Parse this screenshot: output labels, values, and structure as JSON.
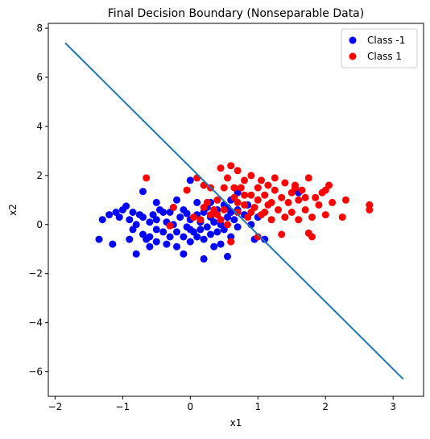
{
  "chart_data": {
    "type": "scatter",
    "title": "Final Decision Boundary (Nonseparable Data)",
    "xlabel": "x1",
    "ylabel": "x2",
    "xlim": [
      -2.1,
      3.45
    ],
    "ylim": [
      -7.0,
      8.2
    ],
    "x_ticks": [
      -2,
      -1,
      0,
      1,
      2,
      3
    ],
    "y_ticks": [
      -6,
      -4,
      -2,
      0,
      2,
      4,
      6,
      8
    ],
    "x_tick_labels": [
      "−2",
      "−1",
      "0",
      "1",
      "2",
      "3"
    ],
    "y_tick_labels": [
      "−6",
      "−4",
      "−2",
      "0",
      "2",
      "4",
      "6",
      "8"
    ],
    "grid": false,
    "legend": {
      "placement": "top-right",
      "entries": [
        {
          "label": "Class -1",
          "color": "#0000ff"
        },
        {
          "label": "Class 1",
          "color": "#ff0000"
        }
      ]
    },
    "boundary_line": {
      "color": "#1f77b4",
      "points": [
        [
          -1.85,
          7.4
        ],
        [
          3.15,
          -6.3
        ]
      ]
    },
    "series": [
      {
        "name": "Class -1",
        "color": "#0000ff",
        "points": [
          [
            -1.35,
            -0.6
          ],
          [
            -1.3,
            0.2
          ],
          [
            -1.2,
            0.4
          ],
          [
            -1.15,
            -0.8
          ],
          [
            -1.1,
            0.5
          ],
          [
            -1.05,
            0.3
          ],
          [
            -1.0,
            0.6
          ],
          [
            -0.95,
            0.75
          ],
          [
            -0.9,
            -0.6
          ],
          [
            -0.9,
            0.2
          ],
          [
            -0.85,
            0.5
          ],
          [
            -0.85,
            -0.2
          ],
          [
            -0.8,
            0.0
          ],
          [
            -0.8,
            -1.2
          ],
          [
            -0.75,
            0.4
          ],
          [
            -0.7,
            -0.4
          ],
          [
            -0.7,
            0.3
          ],
          [
            -0.65,
            -0.6
          ],
          [
            -0.6,
            -0.5
          ],
          [
            -0.6,
            0.1
          ],
          [
            -0.6,
            -0.9
          ],
          [
            -0.55,
            0.4
          ],
          [
            -0.5,
            -0.2
          ],
          [
            -0.5,
            -0.7
          ],
          [
            -0.5,
            0.2
          ],
          [
            -0.45,
            0.6
          ],
          [
            -0.4,
            -0.3
          ],
          [
            -0.35,
            0.1
          ],
          [
            -0.35,
            -0.8
          ],
          [
            -0.3,
            0.5
          ],
          [
            -0.3,
            -0.5
          ],
          [
            -0.25,
            0.0
          ],
          [
            -0.2,
            -0.3
          ],
          [
            -0.2,
            -0.9
          ],
          [
            -0.15,
            0.3
          ],
          [
            -0.1,
            -0.5
          ],
          [
            -0.1,
            0.6
          ],
          [
            -0.05,
            -0.1
          ],
          [
            0.0,
            0.2
          ],
          [
            0.0,
            -0.7
          ],
          [
            0.05,
            -0.3
          ],
          [
            0.1,
            0.4
          ],
          [
            0.1,
            -0.5
          ],
          [
            0.15,
            0.1
          ],
          [
            0.15,
            -0.2
          ],
          [
            0.2,
            -0.6
          ],
          [
            0.2,
            0.5
          ],
          [
            0.25,
            -0.1
          ],
          [
            0.3,
            0.3
          ],
          [
            0.3,
            -0.4
          ],
          [
            0.35,
            0.1
          ],
          [
            0.4,
            -0.3
          ],
          [
            0.4,
            0.6
          ],
          [
            0.45,
            0.0
          ],
          [
            0.5,
            -0.2
          ],
          [
            0.5,
            0.8
          ],
          [
            0.55,
            0.3
          ],
          [
            0.6,
            -0.5
          ],
          [
            0.6,
            0.5
          ],
          [
            0.65,
            0.2
          ],
          [
            0.7,
            -0.1
          ],
          [
            0.7,
            0.6
          ],
          [
            0.8,
            0.4
          ],
          [
            0.9,
            0.0
          ],
          [
            1.0,
            0.3
          ],
          [
            0.95,
            -0.6
          ],
          [
            1.1,
            -0.6
          ],
          [
            -0.7,
            1.35
          ],
          [
            -0.5,
            0.9
          ],
          [
            0.0,
            1.8
          ],
          [
            -0.2,
            1.0
          ],
          [
            0.1,
            0.9
          ],
          [
            0.2,
            -1.4
          ],
          [
            -0.1,
            -1.2
          ],
          [
            0.45,
            -0.8
          ],
          [
            0.55,
            -1.3
          ],
          [
            0.3,
            0.9
          ],
          [
            0.55,
            0.7
          ],
          [
            -0.25,
            0.7
          ],
          [
            0.6,
            1.0
          ],
          [
            0.7,
            1.3
          ],
          [
            0.85,
            0.8
          ],
          [
            1.6,
            1.3
          ],
          [
            0.0,
            -0.2
          ],
          [
            -0.05,
            0.45
          ],
          [
            0.25,
            0.7
          ],
          [
            0.35,
            -0.9
          ],
          [
            -0.4,
            0.5
          ]
        ]
      },
      {
        "name": "Class 1",
        "color": "#ff0000",
        "points": [
          [
            -0.65,
            1.9
          ],
          [
            -0.3,
            -0.05
          ],
          [
            -0.25,
            0.7
          ],
          [
            0.05,
            0.3
          ],
          [
            0.1,
            1.9
          ],
          [
            0.15,
            0.2
          ],
          [
            0.2,
            1.6
          ],
          [
            0.25,
            0.9
          ],
          [
            0.3,
            0.4
          ],
          [
            0.35,
            0.6
          ],
          [
            0.4,
            1.0
          ],
          [
            0.45,
            0.2
          ],
          [
            0.5,
            1.5
          ],
          [
            0.5,
            0.6
          ],
          [
            0.55,
            1.9
          ],
          [
            0.55,
            0.0
          ],
          [
            0.6,
            2.4
          ],
          [
            0.6,
            -0.7
          ],
          [
            0.65,
            1.1
          ],
          [
            0.7,
            0.5
          ],
          [
            0.7,
            2.2
          ],
          [
            0.75,
            1.5
          ],
          [
            0.8,
            0.8
          ],
          [
            0.8,
            1.8
          ],
          [
            0.85,
            0.3
          ],
          [
            0.9,
            1.2
          ],
          [
            0.9,
            2.0
          ],
          [
            0.95,
            0.7
          ],
          [
            1.0,
            1.5
          ],
          [
            1.0,
            1.0
          ],
          [
            1.05,
            1.8
          ],
          [
            1.1,
            0.5
          ],
          [
            1.1,
            1.2
          ],
          [
            1.15,
            1.6
          ],
          [
            1.2,
            0.9
          ],
          [
            1.2,
            0.2
          ],
          [
            1.25,
            1.4
          ],
          [
            1.3,
            0.6
          ],
          [
            1.35,
            1.1
          ],
          [
            1.4,
            1.7
          ],
          [
            1.4,
            0.3
          ],
          [
            1.45,
            0.9
          ],
          [
            1.5,
            1.3
          ],
          [
            1.5,
            0.5
          ],
          [
            1.55,
            1.6
          ],
          [
            1.6,
            0.2
          ],
          [
            1.6,
            1.0
          ],
          [
            1.65,
            1.4
          ],
          [
            1.7,
            0.6
          ],
          [
            1.75,
            1.9
          ],
          [
            1.8,
            0.3
          ],
          [
            1.8,
            -0.5
          ],
          [
            1.85,
            1.1
          ],
          [
            1.9,
            0.8
          ],
          [
            2.0,
            1.4
          ],
          [
            2.0,
            0.4
          ],
          [
            2.05,
            1.6
          ],
          [
            2.1,
            0.9
          ],
          [
            2.25,
            0.3
          ],
          [
            2.3,
            1.0
          ],
          [
            2.65,
            0.8
          ],
          [
            2.65,
            0.6
          ],
          [
            1.0,
            -0.5
          ],
          [
            1.35,
            -0.4
          ],
          [
            1.75,
            -0.35
          ],
          [
            0.3,
            1.5
          ],
          [
            0.45,
            2.3
          ],
          [
            -0.05,
            1.4
          ],
          [
            0.8,
            1.2
          ],
          [
            1.25,
            1.9
          ],
          [
            0.7,
            0.9
          ],
          [
            1.55,
            1.5
          ],
          [
            0.4,
            0.4
          ],
          [
            0.2,
            0.7
          ],
          [
            0.65,
            1.5
          ],
          [
            1.05,
            0.4
          ],
          [
            1.95,
            1.3
          ],
          [
            1.7,
            1.1
          ],
          [
            0.9,
            0.5
          ],
          [
            1.15,
            0.8
          ]
        ]
      }
    ]
  }
}
